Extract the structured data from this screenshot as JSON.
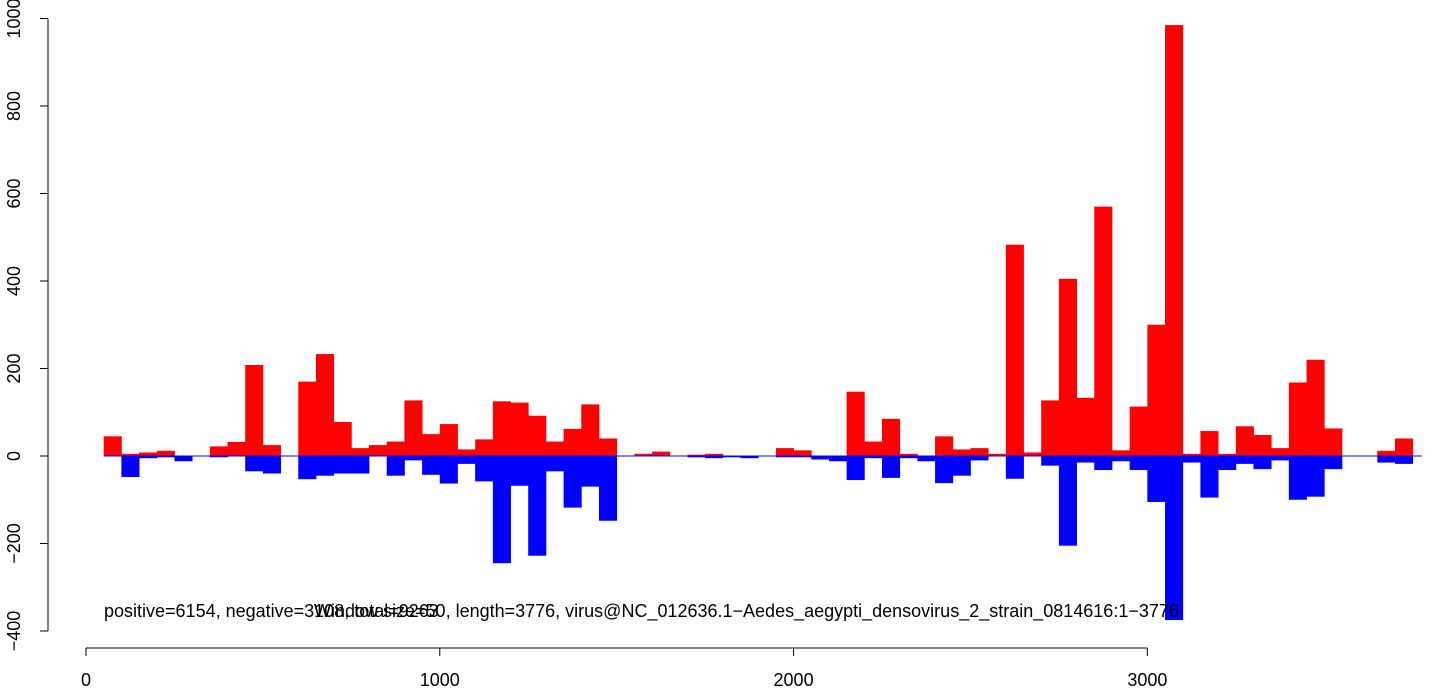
{
  "chart_data": {
    "type": "bar",
    "title": "",
    "xlabel": "",
    "ylabel": "",
    "xlim": [
      0,
      3776
    ],
    "ylim": [
      -400,
      1000
    ],
    "bin_width": 50,
    "x_ticks": [
      0,
      1000,
      2000,
      3000
    ],
    "y_ticks": [
      -400,
      -200,
      0,
      200,
      400,
      600,
      800,
      1000
    ],
    "grid": false,
    "legend": "none",
    "colors": {
      "positive": "#ff0000",
      "negative": "#0000ff",
      "zero_line": "#0000ff"
    },
    "annotation_left": "positive=6154, negative=3108, total=9263",
    "annotation_right": "Window size=50, length=3776, virus@NC_012636.1−Aedes_aegypti_densovirus_2_strain_0814616:1−3776",
    "x": [
      50,
      100,
      150,
      200,
      250,
      300,
      350,
      400,
      450,
      500,
      550,
      600,
      650,
      700,
      750,
      800,
      850,
      900,
      950,
      1000,
      1050,
      1100,
      1150,
      1200,
      1250,
      1300,
      1350,
      1400,
      1450,
      1500,
      1550,
      1600,
      1650,
      1700,
      1750,
      1800,
      1850,
      1900,
      1950,
      2000,
      2050,
      2100,
      2150,
      2200,
      2250,
      2300,
      2350,
      2400,
      2450,
      2500,
      2550,
      2600,
      2650,
      2700,
      2750,
      2800,
      2850,
      2900,
      2950,
      3000,
      3050,
      3100,
      3150,
      3200,
      3250,
      3300,
      3350,
      3400,
      3450,
      3500,
      3550,
      3600,
      3650,
      3700,
      3750
    ],
    "series": [
      {
        "name": "positive",
        "values": [
          45,
          5,
          8,
          12,
          0,
          0,
          22,
          32,
          208,
          25,
          0,
          170,
          233,
          78,
          18,
          25,
          33,
          127,
          50,
          73,
          15,
          38,
          125,
          122,
          92,
          33,
          62,
          118,
          40,
          0,
          5,
          10,
          0,
          3,
          5,
          0,
          0,
          0,
          18,
          13,
          0,
          0,
          147,
          33,
          85,
          5,
          0,
          45,
          15,
          18,
          5,
          483,
          8,
          127,
          405,
          133,
          570,
          13,
          113,
          300,
          985,
          5,
          57,
          5,
          68,
          48,
          18,
          168,
          220,
          63,
          0,
          0,
          12,
          40,
          0
        ]
      },
      {
        "name": "negative",
        "values": [
          0,
          -48,
          -5,
          -3,
          -12,
          0,
          -3,
          0,
          -35,
          -40,
          0,
          -53,
          -45,
          -40,
          -40,
          0,
          -45,
          -10,
          -43,
          -63,
          -18,
          -58,
          -245,
          -68,
          -228,
          -35,
          -118,
          -70,
          -148,
          0,
          0,
          0,
          0,
          -3,
          -5,
          -3,
          -5,
          0,
          -3,
          -3,
          -8,
          -12,
          -55,
          -5,
          -50,
          -5,
          -12,
          -62,
          -45,
          -10,
          0,
          -52,
          0,
          -22,
          -205,
          -15,
          -32,
          -12,
          -32,
          -105,
          -375,
          -15,
          -95,
          -32,
          -18,
          -30,
          -10,
          -100,
          -93,
          -30,
          0,
          0,
          -15,
          -18,
          0
        ]
      }
    ]
  }
}
